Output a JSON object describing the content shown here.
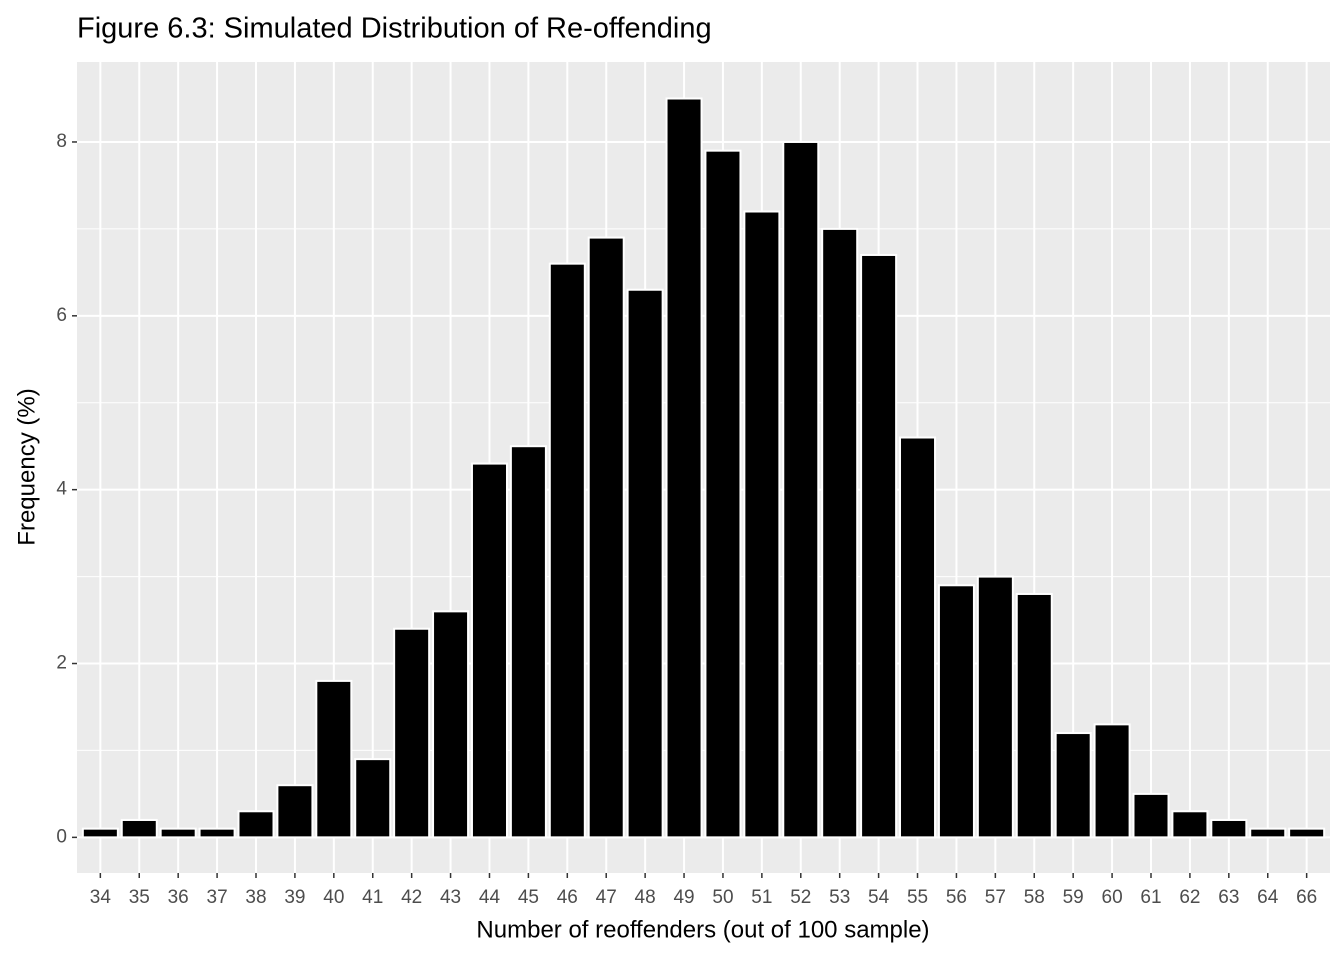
{
  "chart_data": {
    "type": "bar",
    "title": "Figure 6.3: Simulated Distribution of Re-offending",
    "x_label": "Number of reoffenders (out of 100 sample)",
    "y_label": "Frequency (%)",
    "categories": [
      "34",
      "35",
      "36",
      "37",
      "38",
      "39",
      "40",
      "41",
      "42",
      "43",
      "44",
      "45",
      "46",
      "47",
      "48",
      "49",
      "50",
      "51",
      "52",
      "53",
      "54",
      "55",
      "56",
      "57",
      "58",
      "59",
      "60",
      "61",
      "62",
      "63",
      "64",
      "66"
    ],
    "values": [
      0.1,
      0.2,
      0.1,
      0.1,
      0.3,
      0.6,
      1.8,
      0.9,
      2.4,
      2.6,
      4.3,
      4.5,
      6.6,
      6.9,
      6.3,
      8.5,
      7.9,
      7.2,
      8.0,
      7.0,
      6.7,
      4.6,
      2.9,
      3.0,
      2.8,
      1.2,
      1.3,
      0.5,
      0.3,
      0.2,
      0.1,
      0.1
    ],
    "color": "#000000",
    "ylim": [
      -0.41,
      8.92
    ],
    "yticks": [
      0,
      2,
      4,
      6,
      8
    ],
    "minor_yticks": [
      1,
      3,
      5,
      7
    ],
    "grid": true
  }
}
